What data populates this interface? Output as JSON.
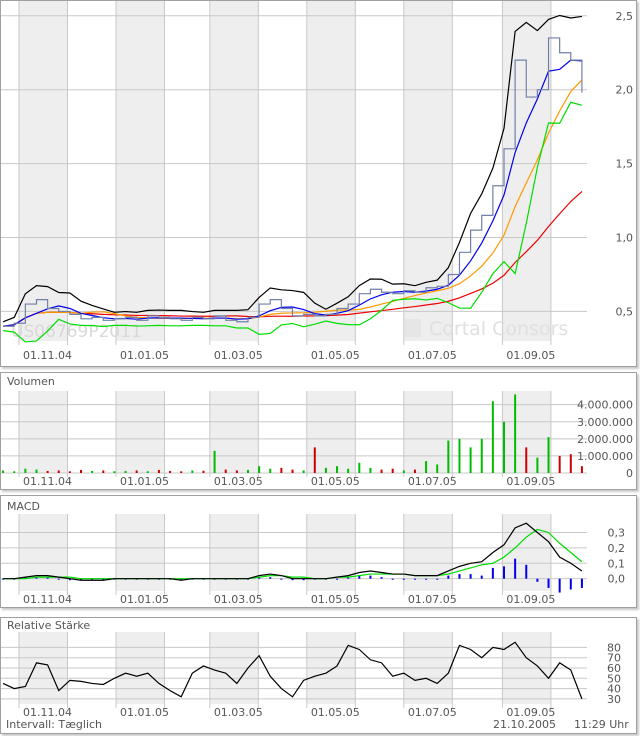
{
  "chart_data": [
    {
      "type": "line",
      "panel": "price",
      "watermark": "US06769P2011",
      "logo_text": "Cortal Consors",
      "y_ticks": [
        0.5,
        1.0,
        1.5,
        2.0,
        2.5
      ],
      "y_tick_labels": [
        "0,5",
        "1,0",
        "1,5",
        "2,0",
        "2,5"
      ],
      "ylim": [
        0.3,
        2.6
      ],
      "x_tick_dates": [
        "2004-11-01",
        "2005-01-01",
        "2005-03-01",
        "2005-05-01",
        "2005-07-01",
        "2005-09-01"
      ],
      "x_tick_labels": [
        "01.11.04",
        "01.01.05",
        "01.03.05",
        "01.05.05",
        "01.07.05",
        "01.09.05"
      ],
      "grid": true,
      "colors": {
        "price": "#7080a8",
        "bb_upper": "#000000",
        "bb_lower": "#00dd00",
        "ma_short": "#0000ee",
        "ma_mid": "#ff9900",
        "ma_long": "#ee0000"
      },
      "dates": [
        "2004-10-22",
        "2004-10-29",
        "2004-11-05",
        "2004-11-12",
        "2004-11-19",
        "2004-11-26",
        "2004-12-03",
        "2004-12-10",
        "2004-12-17",
        "2004-12-24",
        "2004-12-31",
        "2005-01-07",
        "2005-01-14",
        "2005-01-21",
        "2005-01-28",
        "2005-02-04",
        "2005-02-11",
        "2005-02-18",
        "2005-02-25",
        "2005-03-04",
        "2005-03-11",
        "2005-03-18",
        "2005-03-25",
        "2005-04-01",
        "2005-04-08",
        "2005-04-15",
        "2005-04-22",
        "2005-04-29",
        "2005-05-06",
        "2005-05-13",
        "2005-05-20",
        "2005-05-27",
        "2005-06-03",
        "2005-06-10",
        "2005-06-17",
        "2005-06-24",
        "2005-07-01",
        "2005-07-08",
        "2005-07-15",
        "2005-07-22",
        "2005-07-29",
        "2005-08-05",
        "2005-08-12",
        "2005-08-19",
        "2005-08-26",
        "2005-09-02",
        "2005-09-09",
        "2005-09-16",
        "2005-09-23",
        "2005-09-30",
        "2005-10-07",
        "2005-10-14",
        "2005-10-21"
      ],
      "close": [
        0.4,
        0.42,
        0.55,
        0.58,
        0.52,
        0.5,
        0.48,
        0.45,
        0.46,
        0.44,
        0.45,
        0.46,
        0.44,
        0.47,
        0.46,
        0.45,
        0.44,
        0.46,
        0.45,
        0.47,
        0.44,
        0.43,
        0.46,
        0.55,
        0.58,
        0.52,
        0.47,
        0.48,
        0.47,
        0.48,
        0.52,
        0.55,
        0.62,
        0.65,
        0.63,
        0.62,
        0.64,
        0.63,
        0.66,
        0.67,
        0.75,
        0.9,
        1.05,
        1.15,
        1.35,
        1.6,
        2.2,
        1.95,
        2.0,
        2.35,
        2.25,
        2.2,
        1.98
      ]
    },
    {
      "type": "bar",
      "panel": "volume",
      "title": "Volumen",
      "y_ticks": [
        0,
        1000000,
        2000000,
        3000000,
        4000000
      ],
      "y_tick_labels": [
        "0",
        "1.000.000",
        "2.000.000",
        "3.000.000",
        "4.000.000"
      ],
      "ylim": [
        0,
        4800000
      ],
      "colors": {
        "up": "#00bb00",
        "down": "#cc0000"
      },
      "values": [
        150000,
        100000,
        250000,
        200000,
        120000,
        150000,
        100000,
        180000,
        120000,
        150000,
        100000,
        120000,
        150000,
        100000,
        180000,
        120000,
        100000,
        150000,
        130000,
        1300000,
        200000,
        150000,
        180000,
        400000,
        250000,
        300000,
        200000,
        150000,
        1500000,
        300000,
        400000,
        250000,
        600000,
        300000,
        200000,
        250000,
        150000,
        200000,
        700000,
        500000,
        1900000,
        2000000,
        1500000,
        2000000,
        4200000,
        3000000,
        4600000,
        1500000,
        900000,
        2100000,
        1000000,
        1100000,
        400000
      ]
    },
    {
      "type": "line",
      "panel": "macd",
      "title": "MACD",
      "y_ticks": [
        0.0,
        0.1,
        0.2,
        0.3
      ],
      "y_tick_labels": [
        "0,0",
        "0,1",
        "0,2",
        "0,3"
      ],
      "ylim": [
        -0.08,
        0.42
      ],
      "colors": {
        "macd": "#000000",
        "signal": "#00dd00",
        "histogram": "#0000ee"
      },
      "macd": [
        0.0,
        0.0,
        0.01,
        0.02,
        0.02,
        0.01,
        0.0,
        -0.01,
        -0.01,
        -0.01,
        0.0,
        0.0,
        0.0,
        0.0,
        0.0,
        0.0,
        -0.01,
        0.0,
        0.0,
        0.0,
        0.0,
        0.0,
        0.0,
        0.02,
        0.03,
        0.02,
        0.0,
        0.0,
        0.0,
        0.0,
        0.01,
        0.02,
        0.04,
        0.05,
        0.04,
        0.03,
        0.03,
        0.02,
        0.02,
        0.02,
        0.05,
        0.08,
        0.1,
        0.11,
        0.17,
        0.22,
        0.33,
        0.36,
        0.3,
        0.24,
        0.14,
        0.1,
        0.05
      ],
      "signal": [
        0.0,
        0.0,
        0.0,
        0.01,
        0.01,
        0.01,
        0.01,
        0.0,
        0.0,
        0.0,
        0.0,
        0.0,
        0.0,
        0.0,
        0.0,
        0.0,
        0.0,
        0.0,
        0.0,
        0.0,
        0.0,
        0.0,
        0.0,
        0.01,
        0.02,
        0.02,
        0.01,
        0.01,
        0.0,
        0.0,
        0.01,
        0.01,
        0.02,
        0.03,
        0.03,
        0.03,
        0.03,
        0.02,
        0.02,
        0.02,
        0.03,
        0.05,
        0.07,
        0.09,
        0.1,
        0.14,
        0.2,
        0.27,
        0.32,
        0.3,
        0.23,
        0.17,
        0.11
      ]
    },
    {
      "type": "line",
      "panel": "rsi",
      "title": "Relative Stärke",
      "y_ticks": [
        30,
        40,
        50,
        60,
        70,
        80
      ],
      "y_tick_labels": [
        "30",
        "40",
        "50",
        "60",
        "70",
        "80"
      ],
      "ylim": [
        25,
        95
      ],
      "colors": {
        "rsi": "#000000"
      },
      "values": [
        45,
        40,
        42,
        65,
        63,
        38,
        48,
        47,
        45,
        44,
        50,
        55,
        52,
        55,
        45,
        38,
        32,
        55,
        62,
        58,
        55,
        45,
        60,
        72,
        52,
        40,
        32,
        48,
        52,
        55,
        62,
        82,
        78,
        68,
        65,
        52,
        55,
        48,
        50,
        45,
        55,
        82,
        78,
        70,
        80,
        78,
        85,
        70,
        62,
        50,
        65,
        58,
        30
      ]
    }
  ],
  "footer": {
    "interval": "Intervall: Tæglich",
    "date": "21.10.2005",
    "time": "11:29 Uhr"
  }
}
